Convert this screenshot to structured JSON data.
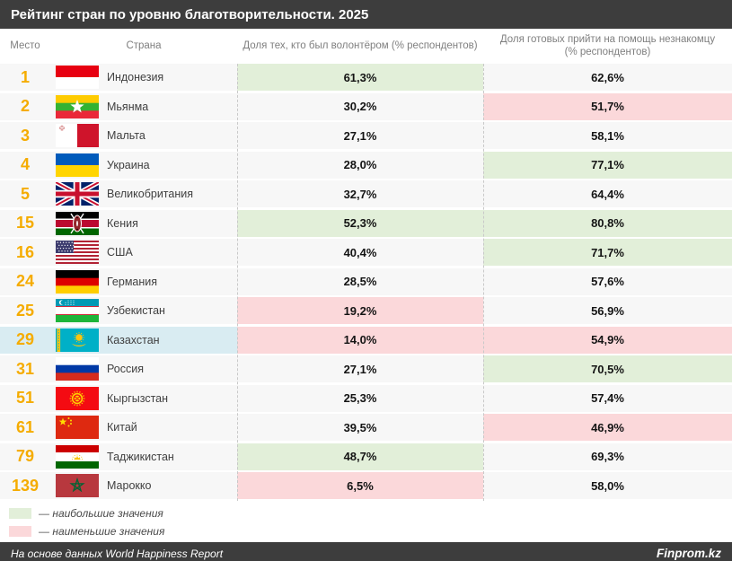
{
  "chart_data": {
    "type": "table",
    "title": "Рейтинг стран по уровню благотворительности. 2025",
    "columns": {
      "rank": "Место",
      "country": "Страна",
      "volunteer": "Доля тех, кто был волонтёром (% респондентов)",
      "help": "Доля готовых прийти на помощь незнакомцу (% респондентов)"
    },
    "rows": [
      {
        "rank": "1",
        "country": "Индонезия",
        "flag": "id",
        "volunteer": "61,3%",
        "volunteer_pct": 61.3,
        "volunteer_highlight": "max",
        "help": "62,6%",
        "help_pct": 62.6,
        "help_highlight": null,
        "row_highlight": false
      },
      {
        "rank": "2",
        "country": "Мьянма",
        "flag": "mm",
        "volunteer": "30,2%",
        "volunteer_pct": 30.2,
        "volunteer_highlight": null,
        "help": "51,7%",
        "help_pct": 51.7,
        "help_highlight": "min",
        "row_highlight": false
      },
      {
        "rank": "3",
        "country": "Мальта",
        "flag": "mt",
        "volunteer": "27,1%",
        "volunteer_pct": 27.1,
        "volunteer_highlight": null,
        "help": "58,1%",
        "help_pct": 58.1,
        "help_highlight": null,
        "row_highlight": false
      },
      {
        "rank": "4",
        "country": "Украина",
        "flag": "ua",
        "volunteer": "28,0%",
        "volunteer_pct": 28.0,
        "volunteer_highlight": null,
        "help": "77,1%",
        "help_pct": 77.1,
        "help_highlight": "max",
        "row_highlight": false
      },
      {
        "rank": "5",
        "country": "Великобритания",
        "flag": "gb",
        "volunteer": "32,7%",
        "volunteer_pct": 32.7,
        "volunteer_highlight": null,
        "help": "64,4%",
        "help_pct": 64.4,
        "help_highlight": null,
        "row_highlight": false
      },
      {
        "rank": "15",
        "country": "Кения",
        "flag": "ke",
        "volunteer": "52,3%",
        "volunteer_pct": 52.3,
        "volunteer_highlight": "max",
        "help": "80,8%",
        "help_pct": 80.8,
        "help_highlight": "max",
        "row_highlight": false
      },
      {
        "rank": "16",
        "country": "США",
        "flag": "us",
        "volunteer": "40,4%",
        "volunteer_pct": 40.4,
        "volunteer_highlight": null,
        "help": "71,7%",
        "help_pct": 71.7,
        "help_highlight": "max",
        "row_highlight": false
      },
      {
        "rank": "24",
        "country": "Германия",
        "flag": "de",
        "volunteer": "28,5%",
        "volunteer_pct": 28.5,
        "volunteer_highlight": null,
        "help": "57,6%",
        "help_pct": 57.6,
        "help_highlight": null,
        "row_highlight": false
      },
      {
        "rank": "25",
        "country": "Узбекистан",
        "flag": "uz",
        "volunteer": "19,2%",
        "volunteer_pct": 19.2,
        "volunteer_highlight": "min",
        "help": "56,9%",
        "help_pct": 56.9,
        "help_highlight": null,
        "row_highlight": false
      },
      {
        "rank": "29",
        "country": "Казахстан",
        "flag": "kz",
        "volunteer": "14,0%",
        "volunteer_pct": 14.0,
        "volunteer_highlight": "min",
        "help": "54,9%",
        "help_pct": 54.9,
        "help_highlight": "min",
        "row_highlight": true
      },
      {
        "rank": "31",
        "country": "Россия",
        "flag": "ru",
        "volunteer": "27,1%",
        "volunteer_pct": 27.1,
        "volunteer_highlight": null,
        "help": "70,5%",
        "help_pct": 70.5,
        "help_highlight": "max",
        "row_highlight": false
      },
      {
        "rank": "51",
        "country": "Кыргызстан",
        "flag": "kg",
        "volunteer": "25,3%",
        "volunteer_pct": 25.3,
        "volunteer_highlight": null,
        "help": "57,4%",
        "help_pct": 57.4,
        "help_highlight": null,
        "row_highlight": false
      },
      {
        "rank": "61",
        "country": "Китай",
        "flag": "cn",
        "volunteer": "39,5%",
        "volunteer_pct": 39.5,
        "volunteer_highlight": null,
        "help": "46,9%",
        "help_pct": 46.9,
        "help_highlight": "min",
        "row_highlight": false
      },
      {
        "rank": "79",
        "country": "Таджикистан",
        "flag": "tj",
        "volunteer": "48,7%",
        "volunteer_pct": 48.7,
        "volunteer_highlight": "max",
        "help": "69,3%",
        "help_pct": 69.3,
        "help_highlight": null,
        "row_highlight": false
      },
      {
        "rank": "139",
        "country": "Марокко",
        "flag": "ma",
        "volunteer": "6,5%",
        "volunteer_pct": 6.5,
        "volunteer_highlight": "min",
        "help": "58,0%",
        "help_pct": 58.0,
        "help_highlight": null,
        "row_highlight": false
      }
    ],
    "legend": {
      "max_label": "— наибольшие значения",
      "min_label": "— наименьшие значения"
    },
    "footer": {
      "source": "На основе данных World Happiness Report",
      "brand": "Finprom.kz"
    },
    "colors": {
      "highlight_max": "#e2efd9",
      "highlight_min": "#fbd8da",
      "row_highlight": "#d9ecf2",
      "rank_accent": "#f5ac00",
      "bar": "#3d3d3d"
    },
    "layout_hints": {
      "highlighted_country": "Казахстан",
      "grid": "off",
      "legend_position": "bottom-left"
    }
  }
}
